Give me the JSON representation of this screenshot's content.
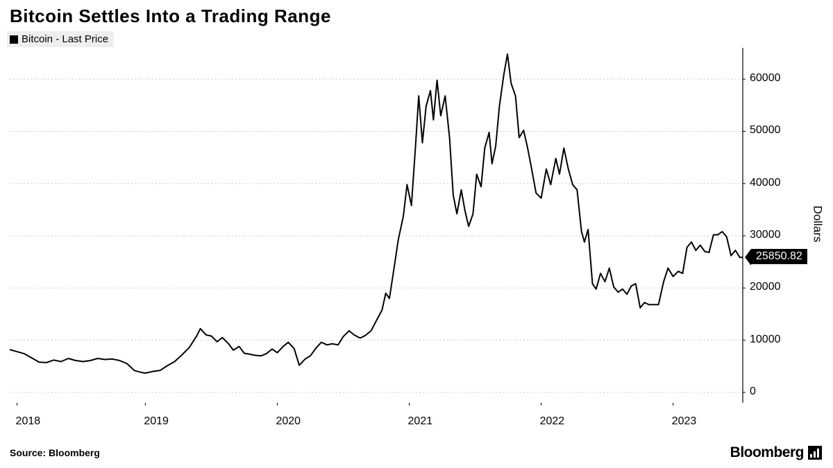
{
  "title": "Bitcoin Settles Into a Trading Range",
  "legend": {
    "label": "Bitcoin - Last Price",
    "marker_color": "#000000",
    "bg_color": "#eeeeee"
  },
  "chart": {
    "type": "line",
    "background_color": "#ffffff",
    "grid_color": "#cccccc",
    "line_color": "#000000",
    "line_width": 2,
    "y_axis": {
      "title": "Dollars",
      "min": -2000,
      "max": 66000,
      "ticks": [
        0,
        10000,
        20000,
        30000,
        40000,
        50000,
        60000
      ],
      "tick_fontsize": 16
    },
    "x_axis": {
      "labels": [
        "2018",
        "2019",
        "2020",
        "2021",
        "2022",
        "2023"
      ],
      "positions": [
        0.01,
        0.185,
        0.365,
        0.545,
        0.725,
        0.905
      ],
      "tick_fontsize": 16
    },
    "last_price": {
      "value": "25850.82",
      "bg_color": "#000000",
      "text_color": "#ffffff"
    },
    "data": [
      [
        0.0,
        8200
      ],
      [
        0.01,
        7800
      ],
      [
        0.02,
        7400
      ],
      [
        0.03,
        6600
      ],
      [
        0.04,
        5800
      ],
      [
        0.05,
        5700
      ],
      [
        0.06,
        6200
      ],
      [
        0.07,
        5900
      ],
      [
        0.08,
        6500
      ],
      [
        0.09,
        6100
      ],
      [
        0.1,
        5900
      ],
      [
        0.11,
        6100
      ],
      [
        0.12,
        6500
      ],
      [
        0.13,
        6300
      ],
      [
        0.14,
        6400
      ],
      [
        0.15,
        6100
      ],
      [
        0.16,
        5500
      ],
      [
        0.17,
        4200
      ],
      [
        0.18,
        3800
      ],
      [
        0.185,
        3700
      ],
      [
        0.195,
        4000
      ],
      [
        0.205,
        4200
      ],
      [
        0.215,
        5100
      ],
      [
        0.225,
        5900
      ],
      [
        0.235,
        7200
      ],
      [
        0.245,
        8600
      ],
      [
        0.255,
        10800
      ],
      [
        0.26,
        12200
      ],
      [
        0.268,
        11000
      ],
      [
        0.275,
        10800
      ],
      [
        0.283,
        9700
      ],
      [
        0.29,
        10500
      ],
      [
        0.298,
        9400
      ],
      [
        0.305,
        8100
      ],
      [
        0.313,
        8800
      ],
      [
        0.32,
        7500
      ],
      [
        0.328,
        7300
      ],
      [
        0.335,
        7100
      ],
      [
        0.343,
        7000
      ],
      [
        0.35,
        7400
      ],
      [
        0.358,
        8300
      ],
      [
        0.365,
        7600
      ],
      [
        0.373,
        8800
      ],
      [
        0.38,
        9600
      ],
      [
        0.388,
        8400
      ],
      [
        0.395,
        5200
      ],
      [
        0.403,
        6400
      ],
      [
        0.41,
        7000
      ],
      [
        0.418,
        8500
      ],
      [
        0.425,
        9600
      ],
      [
        0.433,
        9100
      ],
      [
        0.44,
        9300
      ],
      [
        0.448,
        9100
      ],
      [
        0.455,
        10700
      ],
      [
        0.463,
        11800
      ],
      [
        0.47,
        11000
      ],
      [
        0.478,
        10400
      ],
      [
        0.485,
        10900
      ],
      [
        0.493,
        11800
      ],
      [
        0.5,
        13700
      ],
      [
        0.508,
        15800
      ],
      [
        0.513,
        19000
      ],
      [
        0.518,
        18000
      ],
      [
        0.524,
        23500
      ],
      [
        0.53,
        29200
      ],
      [
        0.537,
        33800
      ],
      [
        0.542,
        39800
      ],
      [
        0.548,
        35800
      ],
      [
        0.554,
        48000
      ],
      [
        0.558,
        56800
      ],
      [
        0.563,
        47800
      ],
      [
        0.568,
        54800
      ],
      [
        0.574,
        57800
      ],
      [
        0.578,
        52200
      ],
      [
        0.583,
        59800
      ],
      [
        0.588,
        53000
      ],
      [
        0.594,
        56800
      ],
      [
        0.6,
        48800
      ],
      [
        0.605,
        37800
      ],
      [
        0.61,
        34200
      ],
      [
        0.616,
        38800
      ],
      [
        0.621,
        34800
      ],
      [
        0.626,
        31800
      ],
      [
        0.632,
        34200
      ],
      [
        0.637,
        41800
      ],
      [
        0.643,
        39400
      ],
      [
        0.648,
        46800
      ],
      [
        0.654,
        49800
      ],
      [
        0.658,
        43800
      ],
      [
        0.663,
        47200
      ],
      [
        0.668,
        54800
      ],
      [
        0.674,
        60800
      ],
      [
        0.679,
        64800
      ],
      [
        0.684,
        59200
      ],
      [
        0.69,
        56800
      ],
      [
        0.695,
        48800
      ],
      [
        0.701,
        50200
      ],
      [
        0.706,
        47200
      ],
      [
        0.712,
        42800
      ],
      [
        0.718,
        38200
      ],
      [
        0.725,
        37200
      ],
      [
        0.732,
        42800
      ],
      [
        0.738,
        39800
      ],
      [
        0.745,
        44800
      ],
      [
        0.75,
        41800
      ],
      [
        0.756,
        46800
      ],
      [
        0.762,
        42800
      ],
      [
        0.768,
        39800
      ],
      [
        0.774,
        38800
      ],
      [
        0.78,
        30800
      ],
      [
        0.784,
        28800
      ],
      [
        0.789,
        31200
      ],
      [
        0.795,
        20800
      ],
      [
        0.8,
        19800
      ],
      [
        0.806,
        22800
      ],
      [
        0.812,
        21200
      ],
      [
        0.818,
        23800
      ],
      [
        0.824,
        20200
      ],
      [
        0.83,
        19200
      ],
      [
        0.836,
        19800
      ],
      [
        0.842,
        18800
      ],
      [
        0.848,
        20400
      ],
      [
        0.854,
        20800
      ],
      [
        0.86,
        16200
      ],
      [
        0.866,
        17200
      ],
      [
        0.872,
        16800
      ],
      [
        0.878,
        16800
      ],
      [
        0.885,
        16800
      ],
      [
        0.892,
        21200
      ],
      [
        0.898,
        23800
      ],
      [
        0.905,
        22200
      ],
      [
        0.912,
        23200
      ],
      [
        0.918,
        22800
      ],
      [
        0.924,
        27800
      ],
      [
        0.93,
        28800
      ],
      [
        0.936,
        27200
      ],
      [
        0.942,
        28200
      ],
      [
        0.948,
        27000
      ],
      [
        0.954,
        26800
      ],
      [
        0.96,
        30200
      ],
      [
        0.966,
        30200
      ],
      [
        0.972,
        30800
      ],
      [
        0.978,
        29800
      ],
      [
        0.984,
        26200
      ],
      [
        0.99,
        27200
      ],
      [
        0.996,
        25850
      ],
      [
        1.0,
        25850
      ]
    ]
  },
  "source": "Source: Bloomberg",
  "brand": "Bloomberg"
}
